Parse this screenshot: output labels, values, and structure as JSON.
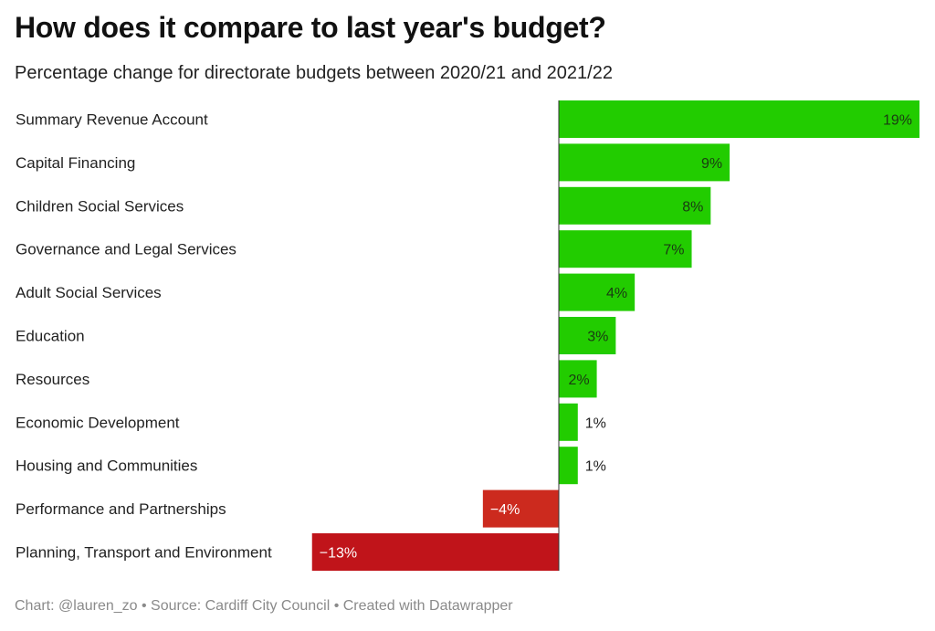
{
  "title": "How does it compare to last year's budget?",
  "subtitle": "Percentage change for directorate budgets between 2020/21 and 2021/22",
  "footer": "Chart: @lauren_zo • Source: Cardiff City Council • Created with Datawrapper",
  "colors": {
    "positive": "#22cc00",
    "negative_small": "#cc2a1e",
    "negative_large": "#c0141a",
    "axis": "#333333"
  },
  "chart_data": {
    "type": "bar",
    "orientation": "horizontal",
    "categories": [
      "Summary Revenue Account",
      "Capital Financing",
      "Children Social Services",
      "Governance and Legal Services",
      "Adult Social Services",
      "Education",
      "Resources",
      "Economic Development",
      "Housing and Communities",
      "Performance and Partnerships",
      "Planning, Transport and Environment"
    ],
    "values": [
      19,
      9,
      8,
      7,
      4,
      3,
      2,
      1,
      1,
      -4,
      -13
    ],
    "value_labels": [
      "19%",
      "9%",
      "8%",
      "7%",
      "4%",
      "3%",
      "2%",
      "1%",
      "1%",
      "−4%",
      "−13%"
    ],
    "xlim": [
      -13,
      19
    ],
    "grid": false
  }
}
